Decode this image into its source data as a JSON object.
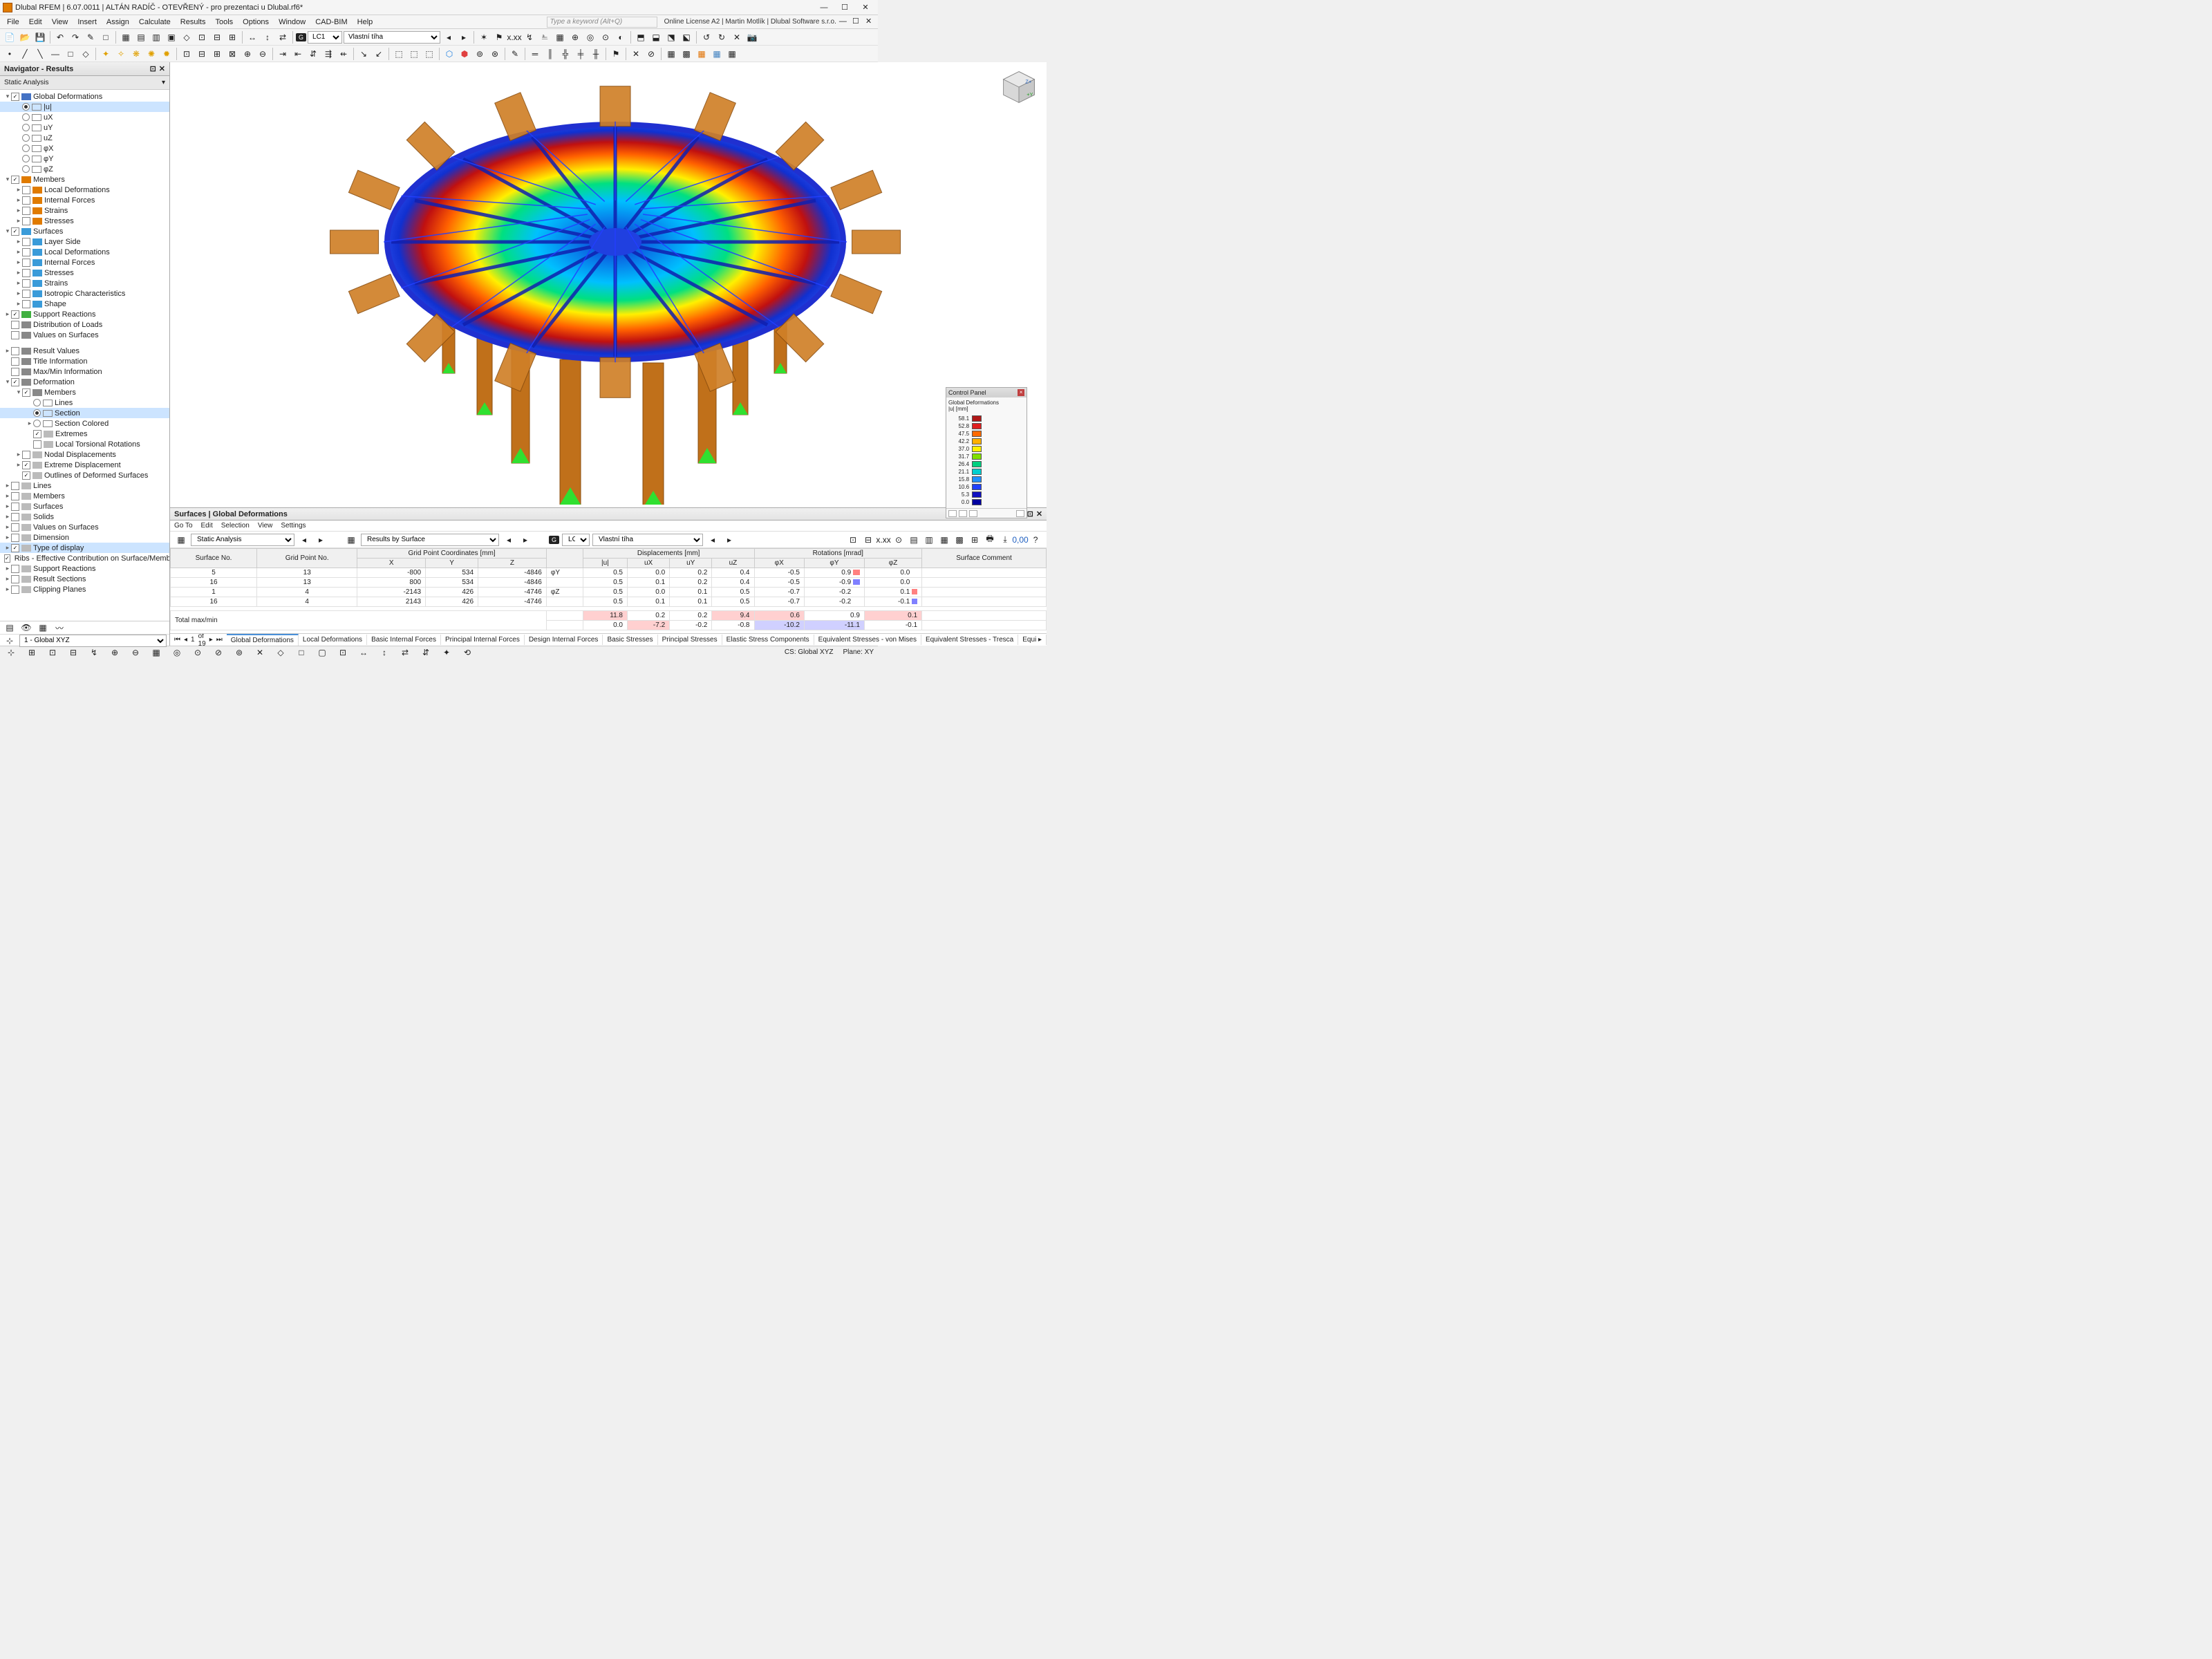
{
  "app": {
    "title": "Dlubal RFEM | 6.07.0011 | ALTÁN RADÍČ - OTEVŘENÝ - pro prezentaci u Dlubal.rf6*",
    "keyword_placeholder": "Type a keyword (Alt+Q)",
    "license_text": "Online License A2 | Martin Motlík | Dlubal Software s.r.o."
  },
  "menus": [
    "File",
    "Edit",
    "View",
    "Insert",
    "Assign",
    "Calculate",
    "Results",
    "Tools",
    "Options",
    "Window",
    "CAD-BIM",
    "Help"
  ],
  "load_case": {
    "badge": "G",
    "code": "LC1",
    "name": "Vlastní tíha"
  },
  "navigator": {
    "title": "Navigator - Results",
    "subtitle": "Static Analysis",
    "sections": [
      {
        "type": "header",
        "arrow": "▾",
        "cb": true,
        "txt": "Global Deformations",
        "indent": 0,
        "icon": "#4472c4"
      },
      {
        "type": "radio",
        "sel": true,
        "txt": "|u|",
        "indent": 1
      },
      {
        "type": "radio",
        "sel": false,
        "txt": "uX",
        "indent": 1
      },
      {
        "type": "radio",
        "sel": false,
        "txt": "uY",
        "indent": 1
      },
      {
        "type": "radio",
        "sel": false,
        "txt": "uZ",
        "indent": 1
      },
      {
        "type": "radio",
        "sel": false,
        "txt": "φX",
        "indent": 1
      },
      {
        "type": "radio",
        "sel": false,
        "txt": "φY",
        "indent": 1
      },
      {
        "type": "radio",
        "sel": false,
        "txt": "φZ",
        "indent": 1
      },
      {
        "type": "header",
        "arrow": "▾",
        "cb": true,
        "txt": "Members",
        "indent": 0,
        "icon": "#e07b00"
      },
      {
        "type": "item",
        "arrow": "▸",
        "cb": false,
        "txt": "Local Deformations",
        "indent": 1,
        "icon": "#e07b00"
      },
      {
        "type": "item",
        "arrow": "▸",
        "cb": false,
        "txt": "Internal Forces",
        "indent": 1,
        "icon": "#e07b00"
      },
      {
        "type": "item",
        "arrow": "▸",
        "cb": false,
        "txt": "Strains",
        "indent": 1,
        "icon": "#e07b00"
      },
      {
        "type": "item",
        "arrow": "▸",
        "cb": false,
        "txt": "Stresses",
        "indent": 1,
        "icon": "#e07b00"
      },
      {
        "type": "header",
        "arrow": "▾",
        "cb": true,
        "txt": "Surfaces",
        "indent": 0,
        "icon": "#3a9bd9"
      },
      {
        "type": "item",
        "arrow": "▸",
        "cb": false,
        "txt": "Layer Side",
        "indent": 1,
        "icon": "#3a9bd9"
      },
      {
        "type": "item",
        "arrow": "▸",
        "cb": false,
        "txt": "Local Deformations",
        "indent": 1,
        "icon": "#3a9bd9"
      },
      {
        "type": "item",
        "arrow": "▸",
        "cb": false,
        "txt": "Internal Forces",
        "indent": 1,
        "icon": "#3a9bd9"
      },
      {
        "type": "item",
        "arrow": "▸",
        "cb": false,
        "txt": "Stresses",
        "indent": 1,
        "icon": "#3a9bd9"
      },
      {
        "type": "item",
        "arrow": "▸",
        "cb": false,
        "txt": "Strains",
        "indent": 1,
        "icon": "#3a9bd9"
      },
      {
        "type": "item",
        "arrow": "▸",
        "cb": false,
        "txt": "Isotropic Characteristics",
        "indent": 1,
        "icon": "#3a9bd9"
      },
      {
        "type": "item",
        "arrow": "▸",
        "cb": false,
        "txt": "Shape",
        "indent": 1,
        "icon": "#3a9bd9"
      },
      {
        "type": "item",
        "arrow": "▸",
        "cb": true,
        "txt": "Support Reactions",
        "indent": 0,
        "icon": "#40b040"
      },
      {
        "type": "item",
        "arrow": "",
        "cb": false,
        "txt": "Distribution of Loads",
        "indent": 0,
        "icon": "#888"
      },
      {
        "type": "item",
        "arrow": "",
        "cb": false,
        "txt": "Values on Surfaces",
        "indent": 0,
        "icon": "#888"
      },
      {
        "type": "spacer"
      },
      {
        "type": "item",
        "arrow": "▸",
        "cb": false,
        "txt": "Result Values",
        "indent": 0,
        "icon": "#888"
      },
      {
        "type": "item",
        "arrow": "",
        "cb": false,
        "txt": "Title Information",
        "indent": 0,
        "icon": "#888"
      },
      {
        "type": "item",
        "arrow": "",
        "cb": false,
        "txt": "Max/Min Information",
        "indent": 0,
        "icon": "#888"
      },
      {
        "type": "header",
        "arrow": "▾",
        "cb": true,
        "txt": "Deformation",
        "indent": 0,
        "icon": "#888"
      },
      {
        "type": "header",
        "arrow": "▾",
        "cb": true,
        "txt": "Members",
        "indent": 1,
        "icon": "#888"
      },
      {
        "type": "radio",
        "sel": false,
        "txt": "Lines",
        "indent": 2
      },
      {
        "type": "radio",
        "sel": true,
        "txt": "Section",
        "indent": 2
      },
      {
        "type": "item",
        "arrow": "▸",
        "sel": false,
        "txt": "Section Colored",
        "indent": 2,
        "radio": true
      },
      {
        "type": "item",
        "arrow": "",
        "cb": true,
        "txt": "Extremes",
        "indent": 2
      },
      {
        "type": "item",
        "arrow": "",
        "cb": false,
        "txt": "Local Torsional Rotations",
        "indent": 2
      },
      {
        "type": "item",
        "arrow": "▸",
        "cb": false,
        "txt": "Nodal Displacements",
        "indent": 1
      },
      {
        "type": "item",
        "arrow": "▸",
        "cb": true,
        "txt": "Extreme Displacement",
        "indent": 1
      },
      {
        "type": "item",
        "arrow": "",
        "cb": true,
        "txt": "Outlines of Deformed Surfaces",
        "indent": 1
      },
      {
        "type": "item",
        "arrow": "▸",
        "cb": false,
        "txt": "Lines",
        "indent": 0
      },
      {
        "type": "item",
        "arrow": "▸",
        "cb": false,
        "txt": "Members",
        "indent": 0
      },
      {
        "type": "item",
        "arrow": "▸",
        "cb": false,
        "txt": "Surfaces",
        "indent": 0
      },
      {
        "type": "item",
        "arrow": "▸",
        "cb": false,
        "txt": "Solids",
        "indent": 0
      },
      {
        "type": "item",
        "arrow": "▸",
        "cb": false,
        "txt": "Values on Surfaces",
        "indent": 0
      },
      {
        "type": "item",
        "arrow": "▸",
        "cb": false,
        "txt": "Dimension",
        "indent": 0
      },
      {
        "type": "item",
        "arrow": "▸",
        "cb": true,
        "txt": "Type of display",
        "indent": 0,
        "sel": true
      },
      {
        "type": "item",
        "arrow": "",
        "cb": true,
        "txt": "Ribs - Effective Contribution on Surface/Member",
        "indent": 0
      },
      {
        "type": "item",
        "arrow": "▸",
        "cb": false,
        "txt": "Support Reactions",
        "indent": 0
      },
      {
        "type": "item",
        "arrow": "▸",
        "cb": false,
        "txt": "Result Sections",
        "indent": 0
      },
      {
        "type": "item",
        "arrow": "▸",
        "cb": false,
        "txt": "Clipping Planes",
        "indent": 0
      }
    ]
  },
  "control_panel": {
    "title": "Control Panel",
    "subtitle": "Global Deformations",
    "unit": "|u| [mm]",
    "scale": [
      {
        "v": "58.1",
        "c": "#b01818"
      },
      {
        "v": "52.8",
        "c": "#e02020"
      },
      {
        "v": "47.5",
        "c": "#ff6a00"
      },
      {
        "v": "42.2",
        "c": "#ffb000"
      },
      {
        "v": "37.0",
        "c": "#fff000"
      },
      {
        "v": "31.7",
        "c": "#80e000"
      },
      {
        "v": "26.4",
        "c": "#00d080"
      },
      {
        "v": "21.1",
        "c": "#00d0d0"
      },
      {
        "v": "15.8",
        "c": "#2090ff"
      },
      {
        "v": "10.6",
        "c": "#2040ff"
      },
      {
        "v": "5.3",
        "c": "#1010c0"
      },
      {
        "v": "0.0",
        "c": "#0000a0"
      }
    ]
  },
  "results": {
    "title": "Surfaces | Global Deformations",
    "menu": [
      "Go To",
      "Edit",
      "Selection",
      "View",
      "Settings"
    ],
    "combo1": "Static Analysis",
    "combo2": "Results by Surface",
    "lc_badge": "G",
    "lc_code": "LC1",
    "lc_name": "Vlastní tíha",
    "header_groups": {
      "coords": "Grid Point Coordinates [mm]",
      "disp": "Displacements [mm]",
      "rot": "Rotations [mrad]",
      "comment": "Surface Comment"
    },
    "cols": [
      "Surface No.",
      "Grid Point No.",
      "X",
      "Y",
      "Z",
      "",
      "|u|",
      "uX",
      "uY",
      "uZ",
      "φX",
      "φY",
      "φZ"
    ],
    "rows": [
      {
        "sn": "5",
        "gp": "13",
        "x": "-800",
        "y": "534",
        "z": "-4846",
        "lbl": "φY",
        "u": "0.5",
        "ux": "0.0",
        "uy": "0.2",
        "uz": "0.4",
        "px": "-0.5",
        "py": "0.9",
        "pz": "0.0",
        "pybar": "#ff8080",
        "pzbar": ""
      },
      {
        "sn": "16",
        "gp": "13",
        "x": "800",
        "y": "534",
        "z": "-4846",
        "lbl": "",
        "u": "0.5",
        "ux": "0.1",
        "uy": "0.2",
        "uz": "0.4",
        "px": "-0.5",
        "py": "-0.9",
        "pz": "0.0",
        "pybar": "#8080ff",
        "pzbar": ""
      },
      {
        "sn": "1",
        "gp": "4",
        "x": "-2143",
        "y": "426",
        "z": "-4746",
        "lbl": "φZ",
        "u": "0.5",
        "ux": "0.0",
        "uy": "0.1",
        "uz": "0.5",
        "px": "-0.7",
        "py": "-0.2",
        "pz": "0.1",
        "pybar": "",
        "pzbar": "#ff8080"
      },
      {
        "sn": "16",
        "gp": "4",
        "x": "2143",
        "y": "426",
        "z": "-4746",
        "lbl": "",
        "u": "0.5",
        "ux": "0.1",
        "uy": "0.1",
        "uz": "0.5",
        "px": "-0.7",
        "py": "-0.2",
        "pz": "-0.1",
        "pybar": "",
        "pzbar": "#8080ff"
      }
    ],
    "total": {
      "label": "Total max/min",
      "u": "11.8",
      "ux": "0.2",
      "uy": "0.2",
      "uz": "9.4",
      "px": "0.6",
      "py": "0.9",
      "pz": "0.1"
    },
    "total2": {
      "u": "0.0",
      "ux": "-7.2",
      "uy": "-0.2",
      "uz": "-0.8",
      "px": "-10.2",
      "py": "-11.1",
      "pz": "-0.1"
    },
    "pager": {
      "page": "1",
      "of": "of 19"
    },
    "tabs": [
      "Global Deformations",
      "Local Deformations",
      "Basic Internal Forces",
      "Principal Internal Forces",
      "Design Internal Forces",
      "Basic Stresses",
      "Principal Stresses",
      "Elastic Stress Components",
      "Equivalent Stresses - von Mises",
      "Equivalent Stresses - Tresca",
      "Equi ▸"
    ]
  },
  "statusbar": {
    "cs": "CS: Global XYZ",
    "plane": "Plane: XY",
    "coord_sys": "1 - Global XYZ"
  }
}
